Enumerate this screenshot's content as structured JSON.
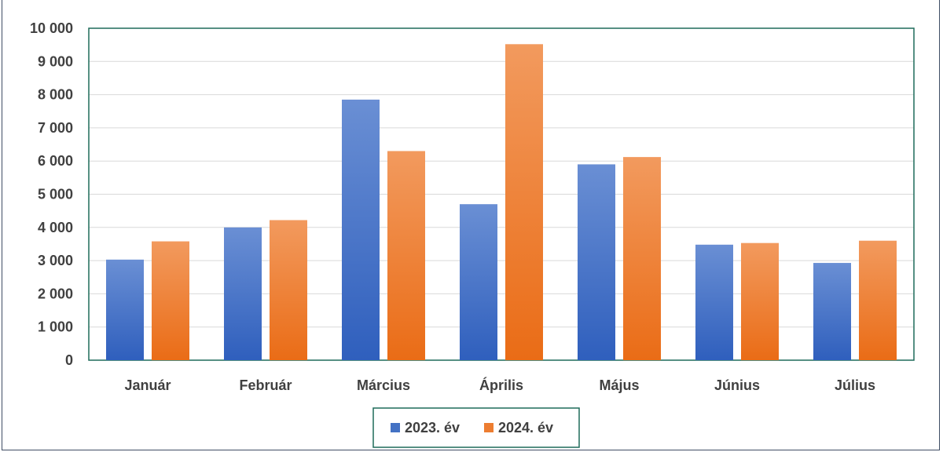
{
  "chart_data": {
    "type": "bar",
    "categories": [
      "Január",
      "Február",
      "Március",
      "Április",
      "Május",
      "Június",
      "Július"
    ],
    "series": [
      {
        "name": "2023. év",
        "values": [
          3030,
          4000,
          7850,
          4700,
          5900,
          3480,
          2930
        ],
        "color": "#4472c4"
      },
      {
        "name": "2024. év",
        "values": [
          3580,
          4220,
          6300,
          9520,
          6120,
          3530,
          3600
        ],
        "color": "#ed7d31"
      }
    ],
    "ylim": [
      0,
      10000
    ],
    "yticks": [
      "0",
      "1 000",
      "2 000",
      "3 000",
      "4 000",
      "5 000",
      "6 000",
      "7 000",
      "8 000",
      "9 000",
      "10 000"
    ],
    "grid": true,
    "legend_position": "bottom"
  }
}
